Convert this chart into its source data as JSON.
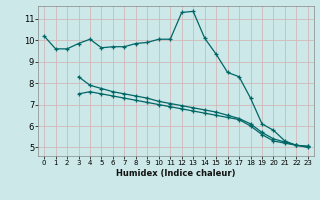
{
  "xlabel": "Humidex (Indice chaleur)",
  "bg_color": "#cce8e8",
  "grid_color": "#d4b8b8",
  "line_color": "#006666",
  "x_ticks": [
    0,
    1,
    2,
    3,
    4,
    5,
    6,
    7,
    8,
    9,
    10,
    11,
    12,
    13,
    14,
    15,
    16,
    17,
    18,
    19,
    20,
    21,
    22,
    23
  ],
  "y_ticks": [
    5,
    6,
    7,
    8,
    9,
    10,
    11
  ],
  "ylim": [
    4.6,
    11.6
  ],
  "xlim": [
    -0.5,
    23.5
  ],
  "series1_x": [
    0,
    1,
    2,
    3,
    4,
    5,
    6,
    7,
    8,
    9,
    10,
    11,
    12,
    13,
    14,
    15,
    16,
    17,
    18,
    19,
    20,
    21,
    22,
    23
  ],
  "series1_y": [
    10.2,
    9.6,
    9.6,
    9.85,
    10.05,
    9.65,
    9.7,
    9.7,
    9.85,
    9.9,
    10.05,
    10.05,
    11.3,
    11.35,
    10.1,
    9.35,
    8.5,
    8.3,
    7.3,
    6.1,
    5.8,
    5.3,
    5.1,
    5.05
  ],
  "series2_x": [
    3,
    4,
    5,
    6,
    7,
    8,
    9,
    10,
    11,
    12,
    13,
    14,
    15,
    16,
    17,
    18,
    19,
    20,
    21,
    22,
    23
  ],
  "series2_y": [
    8.3,
    7.9,
    7.75,
    7.6,
    7.5,
    7.4,
    7.3,
    7.15,
    7.05,
    6.95,
    6.85,
    6.75,
    6.65,
    6.5,
    6.35,
    6.1,
    5.7,
    5.4,
    5.25,
    5.1,
    5.05
  ],
  "series3_x": [
    3,
    4,
    5,
    6,
    7,
    8,
    9,
    10,
    11,
    12,
    13,
    14,
    15,
    16,
    17,
    18,
    19,
    20,
    21,
    22,
    23
  ],
  "series3_y": [
    7.5,
    7.6,
    7.5,
    7.4,
    7.3,
    7.2,
    7.1,
    7.0,
    6.9,
    6.8,
    6.7,
    6.6,
    6.5,
    6.4,
    6.3,
    6.0,
    5.6,
    5.3,
    5.2,
    5.1,
    5.0
  ],
  "isolated_x": [
    3
  ],
  "isolated_y": [
    8.3
  ]
}
